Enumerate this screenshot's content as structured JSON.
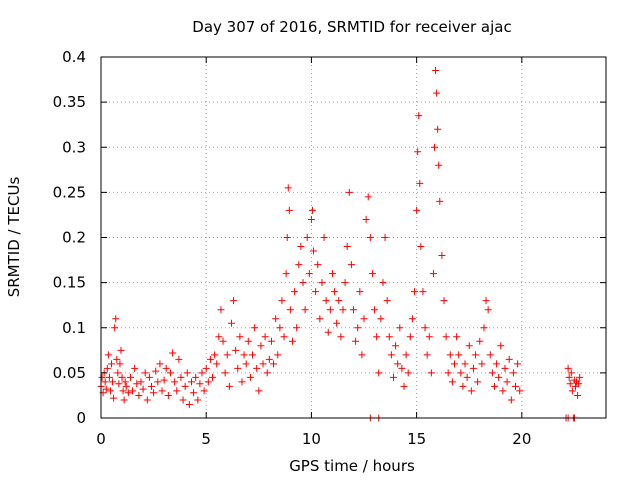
{
  "chart_data": {
    "type": "scatter",
    "title": "Day 307 of 2016, SRMTID for receiver ajac",
    "xlabel": "GPS time / hours",
    "ylabel": "SRMTID / TECUs",
    "xlim": [
      0,
      24
    ],
    "ylim": [
      0,
      0.4
    ],
    "x_ticks": [
      0,
      5,
      10,
      15,
      20
    ],
    "y_ticks": [
      0,
      0.05,
      0.1,
      0.15,
      0.2,
      0.25,
      0.3,
      0.35,
      0.4
    ],
    "x_tick_labels": [
      "0",
      "5",
      "10",
      "15",
      "20"
    ],
    "y_tick_labels": [
      "0",
      "0.05",
      "0.1",
      "0.15",
      "0.2",
      "0.25",
      "0.3",
      "0.35",
      "0.4"
    ],
    "grid": true,
    "marker": "+",
    "series_color": "#ff0000",
    "series": [
      {
        "name": "SRMTID",
        "points": [
          [
            0.0,
            0.035
          ],
          [
            0.05,
            0.045
          ],
          [
            0.1,
            0.028
          ],
          [
            0.15,
            0.05
          ],
          [
            0.2,
            0.04
          ],
          [
            0.25,
            0.032
          ],
          [
            0.3,
            0.055
          ],
          [
            0.35,
            0.07
          ],
          [
            0.4,
            0.045
          ],
          [
            0.45,
            0.03
          ],
          [
            0.5,
            0.06
          ],
          [
            0.55,
            0.04
          ],
          [
            0.6,
            0.022
          ],
          [
            0.65,
            0.1
          ],
          [
            0.7,
            0.11
          ],
          [
            0.75,
            0.065
          ],
          [
            0.8,
            0.05
          ],
          [
            0.85,
            0.038
          ],
          [
            0.9,
            0.06
          ],
          [
            0.95,
            0.075
          ],
          [
            1.0,
            0.045
          ],
          [
            1.05,
            0.03
          ],
          [
            1.1,
            0.02
          ],
          [
            1.15,
            0.04
          ],
          [
            1.2,
            0.035
          ],
          [
            1.3,
            0.028
          ],
          [
            1.4,
            0.045
          ],
          [
            1.5,
            0.03
          ],
          [
            1.6,
            0.055
          ],
          [
            1.7,
            0.038
          ],
          [
            1.8,
            0.025
          ],
          [
            1.9,
            0.04
          ],
          [
            2.0,
            0.032
          ],
          [
            2.1,
            0.05
          ],
          [
            2.2,
            0.02
          ],
          [
            2.3,
            0.045
          ],
          [
            2.4,
            0.035
          ],
          [
            2.5,
            0.028
          ],
          [
            2.6,
            0.052
          ],
          [
            2.7,
            0.04
          ],
          [
            2.8,
            0.06
          ],
          [
            2.9,
            0.03
          ],
          [
            3.0,
            0.042
          ],
          [
            3.1,
            0.055
          ],
          [
            3.2,
            0.025
          ],
          [
            3.3,
            0.05
          ],
          [
            3.4,
            0.072
          ],
          [
            3.5,
            0.04
          ],
          [
            3.6,
            0.03
          ],
          [
            3.7,
            0.065
          ],
          [
            3.8,
            0.045
          ],
          [
            3.9,
            0.02
          ],
          [
            4.0,
            0.035
          ],
          [
            4.1,
            0.05
          ],
          [
            4.2,
            0.015
          ],
          [
            4.3,
            0.04
          ],
          [
            4.4,
            0.028
          ],
          [
            4.5,
            0.045
          ],
          [
            4.6,
            0.02
          ],
          [
            4.7,
            0.038
          ],
          [
            4.8,
            0.05
          ],
          [
            4.9,
            0.03
          ],
          [
            5.0,
            0.055
          ],
          [
            5.1,
            0.04
          ],
          [
            5.2,
            0.065
          ],
          [
            5.3,
            0.045
          ],
          [
            5.4,
            0.07
          ],
          [
            5.5,
            0.06
          ],
          [
            5.6,
            0.09
          ],
          [
            5.7,
            0.12
          ],
          [
            5.8,
            0.085
          ],
          [
            5.9,
            0.05
          ],
          [
            6.0,
            0.07
          ],
          [
            6.1,
            0.035
          ],
          [
            6.2,
            0.105
          ],
          [
            6.3,
            0.13
          ],
          [
            6.4,
            0.075
          ],
          [
            6.5,
            0.055
          ],
          [
            6.6,
            0.09
          ],
          [
            6.7,
            0.04
          ],
          [
            6.8,
            0.07
          ],
          [
            6.9,
            0.06
          ],
          [
            7.0,
            0.085
          ],
          [
            7.1,
            0.045
          ],
          [
            7.2,
            0.07
          ],
          [
            7.3,
            0.1
          ],
          [
            7.4,
            0.055
          ],
          [
            7.5,
            0.03
          ],
          [
            7.6,
            0.08
          ],
          [
            7.7,
            0.06
          ],
          [
            7.8,
            0.09
          ],
          [
            7.9,
            0.05
          ],
          [
            8.0,
            0.065
          ],
          [
            8.1,
            0.085
          ],
          [
            8.2,
            0.06
          ],
          [
            8.3,
            0.11
          ],
          [
            8.4,
            0.07
          ],
          [
            8.5,
            0.1
          ],
          [
            8.6,
            0.13
          ],
          [
            8.7,
            0.09
          ],
          [
            8.8,
            0.16
          ],
          [
            8.85,
            0.2
          ],
          [
            8.9,
            0.255
          ],
          [
            8.95,
            0.23
          ],
          [
            9.0,
            0.12
          ],
          [
            9.1,
            0.085
          ],
          [
            9.2,
            0.14
          ],
          [
            9.3,
            0.1
          ],
          [
            9.4,
            0.17
          ],
          [
            9.5,
            0.19
          ],
          [
            9.6,
            0.15
          ],
          [
            9.7,
            0.12
          ],
          [
            9.8,
            0.2
          ],
          [
            9.9,
            0.16
          ],
          [
            10.0,
            0.22
          ],
          [
            10.05,
            0.23
          ],
          [
            10.1,
            0.185
          ],
          [
            10.2,
            0.14
          ],
          [
            10.3,
            0.17
          ],
          [
            10.4,
            0.11
          ],
          [
            10.5,
            0.15
          ],
          [
            10.6,
            0.2
          ],
          [
            10.7,
            0.13
          ],
          [
            10.8,
            0.095
          ],
          [
            10.9,
            0.12
          ],
          [
            11.0,
            0.16
          ],
          [
            11.1,
            0.14
          ],
          [
            11.2,
            0.105
          ],
          [
            11.3,
            0.13
          ],
          [
            11.4,
            0.09
          ],
          [
            11.5,
            0.12
          ],
          [
            11.6,
            0.15
          ],
          [
            11.7,
            0.19
          ],
          [
            11.8,
            0.25
          ],
          [
            11.9,
            0.17
          ],
          [
            12.0,
            0.12
          ],
          [
            12.1,
            0.085
          ],
          [
            12.2,
            0.1
          ],
          [
            12.3,
            0.14
          ],
          [
            12.4,
            0.07
          ],
          [
            12.5,
            0.11
          ],
          [
            12.6,
            0.22
          ],
          [
            12.7,
            0.245
          ],
          [
            12.8,
            0.2
          ],
          [
            12.9,
            0.16
          ],
          [
            13.0,
            0.12
          ],
          [
            13.1,
            0.09
          ],
          [
            13.2,
            0.05
          ],
          [
            13.3,
            0.11
          ],
          [
            13.4,
            0.15
          ],
          [
            13.5,
            0.2
          ],
          [
            13.6,
            0.13
          ],
          [
            13.7,
            0.09
          ],
          [
            13.8,
            0.07
          ],
          [
            13.9,
            0.045
          ],
          [
            14.0,
            0.08
          ],
          [
            14.1,
            0.06
          ],
          [
            14.2,
            0.1
          ],
          [
            14.3,
            0.055
          ],
          [
            14.4,
            0.035
          ],
          [
            14.5,
            0.07
          ],
          [
            14.6,
            0.05
          ],
          [
            14.7,
            0.09
          ],
          [
            14.8,
            0.11
          ],
          [
            14.9,
            0.14
          ],
          [
            15.0,
            0.23
          ],
          [
            15.05,
            0.295
          ],
          [
            15.1,
            0.335
          ],
          [
            15.15,
            0.26
          ],
          [
            15.2,
            0.19
          ],
          [
            15.3,
            0.14
          ],
          [
            15.4,
            0.1
          ],
          [
            15.5,
            0.07
          ],
          [
            15.6,
            0.09
          ],
          [
            15.7,
            0.05
          ],
          [
            15.8,
            0.16
          ],
          [
            15.85,
            0.3
          ],
          [
            15.9,
            0.385
          ],
          [
            15.95,
            0.36
          ],
          [
            16.0,
            0.32
          ],
          [
            16.05,
            0.28
          ],
          [
            16.1,
            0.24
          ],
          [
            16.2,
            0.18
          ],
          [
            16.3,
            0.13
          ],
          [
            16.4,
            0.09
          ],
          [
            16.5,
            0.05
          ],
          [
            16.6,
            0.07
          ],
          [
            16.7,
            0.04
          ],
          [
            16.8,
            0.06
          ],
          [
            16.9,
            0.09
          ],
          [
            17.0,
            0.07
          ],
          [
            17.1,
            0.05
          ],
          [
            17.2,
            0.035
          ],
          [
            17.3,
            0.06
          ],
          [
            17.4,
            0.045
          ],
          [
            17.5,
            0.08
          ],
          [
            17.6,
            0.03
          ],
          [
            17.7,
            0.055
          ],
          [
            17.8,
            0.07
          ],
          [
            17.9,
            0.04
          ],
          [
            18.0,
            0.085
          ],
          [
            18.1,
            0.06
          ],
          [
            18.2,
            0.1
          ],
          [
            18.3,
            0.13
          ],
          [
            18.4,
            0.12
          ],
          [
            18.5,
            0.07
          ],
          [
            18.6,
            0.05
          ],
          [
            18.7,
            0.035
          ],
          [
            18.8,
            0.06
          ],
          [
            18.9,
            0.045
          ],
          [
            19.0,
            0.08
          ],
          [
            19.1,
            0.03
          ],
          [
            19.2,
            0.055
          ],
          [
            19.3,
            0.04
          ],
          [
            19.4,
            0.065
          ],
          [
            19.5,
            0.02
          ],
          [
            19.6,
            0.05
          ],
          [
            19.7,
            0.035
          ],
          [
            19.8,
            0.06
          ],
          [
            19.9,
            0.03
          ],
          [
            12.8,
            0.0
          ],
          [
            13.2,
            0.0
          ],
          [
            22.1,
            0.0
          ],
          [
            22.2,
            0.0
          ],
          [
            22.45,
            0.0
          ],
          [
            22.5,
            0.0
          ],
          [
            22.2,
            0.055
          ],
          [
            22.25,
            0.045
          ],
          [
            22.3,
            0.038
          ],
          [
            22.35,
            0.05
          ],
          [
            22.4,
            0.03
          ],
          [
            22.5,
            0.042
          ],
          [
            22.55,
            0.035
          ],
          [
            22.6,
            0.04
          ],
          [
            22.65,
            0.025
          ],
          [
            22.7,
            0.038
          ],
          [
            22.75,
            0.045
          ]
        ]
      }
    ]
  }
}
